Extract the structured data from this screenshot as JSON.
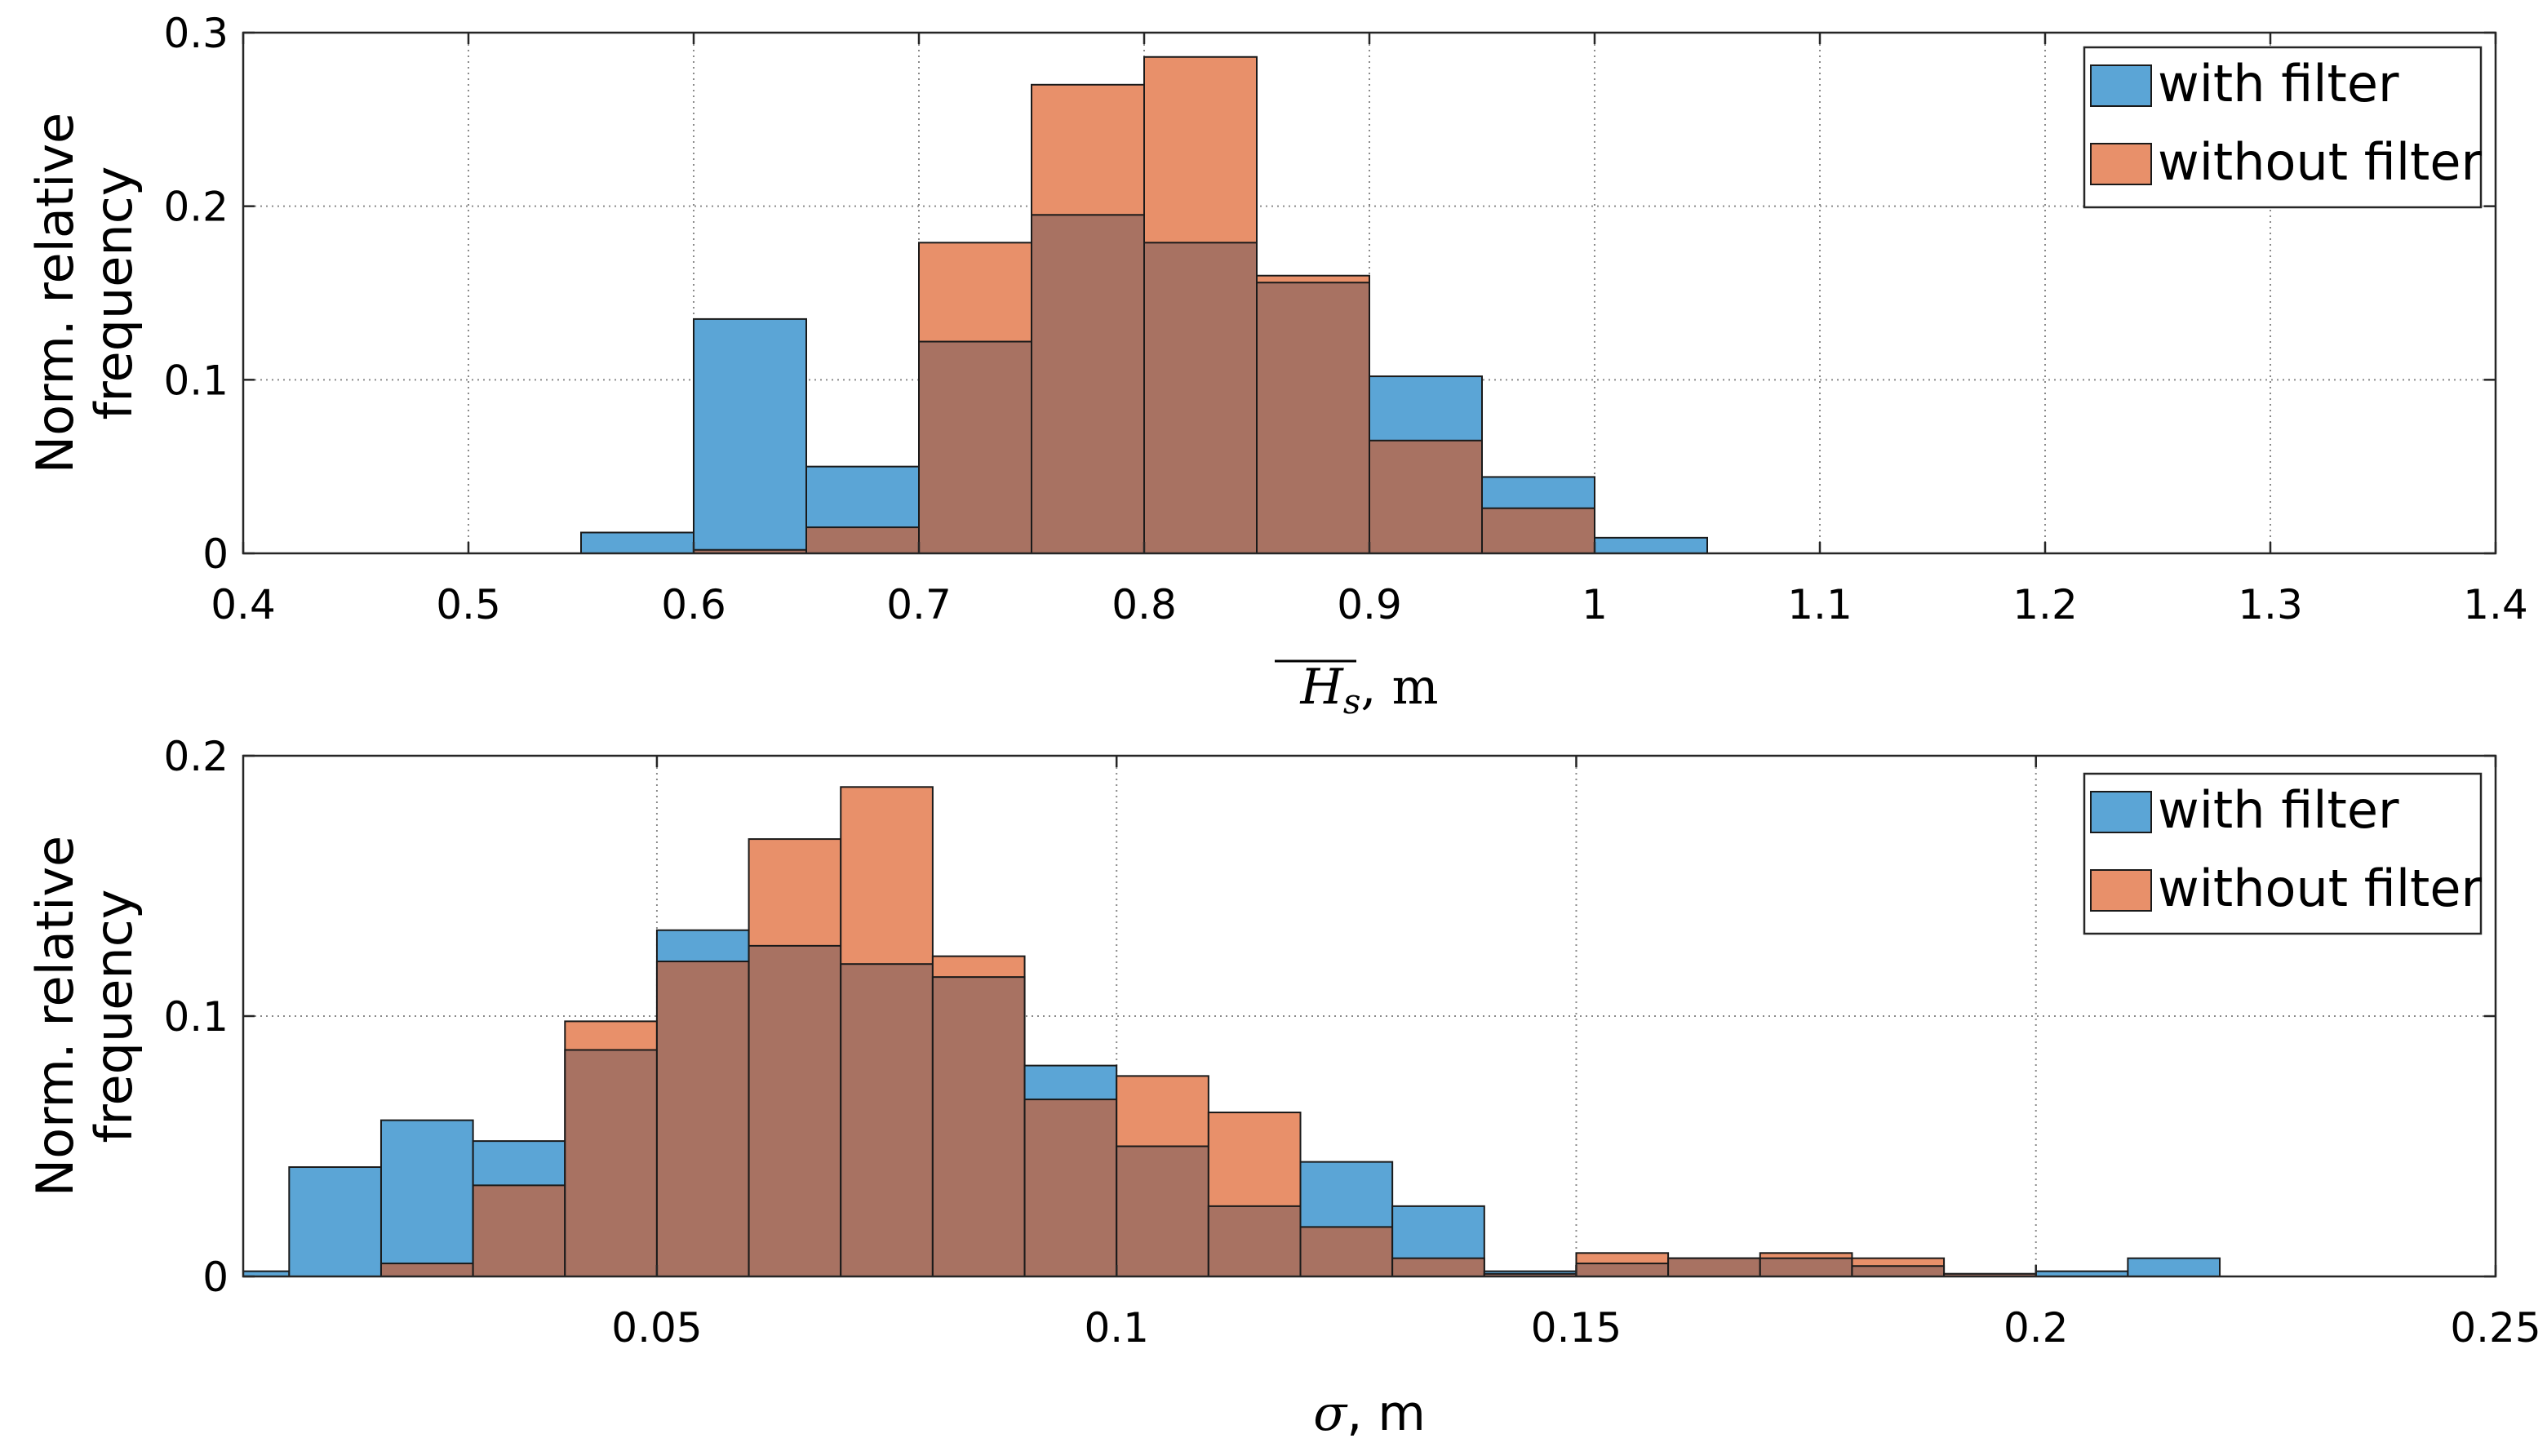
{
  "colors": {
    "with_filter": "#5ba5d6",
    "without_filter": "#e8906a",
    "overlap": "#a87262"
  },
  "chart_data": [
    {
      "type": "bar",
      "title": "",
      "xlabel": {
        "symbol": "H",
        "sub": "s",
        "unit": ", m",
        "overline": true
      },
      "ylabel": [
        "Norm. relative",
        "frequency"
      ],
      "xlim": [
        0.4,
        1.4
      ],
      "ylim": [
        0,
        0.3
      ],
      "xticks": [
        0.4,
        0.5,
        0.6,
        0.7,
        0.8,
        0.9,
        1,
        1.1,
        1.2,
        1.3,
        1.4
      ],
      "xtick_labels": [
        "0.4",
        "0.5",
        "0.6",
        "0.7",
        "0.8",
        "0.9",
        "1",
        "1.1",
        "1.2",
        "1.3",
        "1.4"
      ],
      "yticks": [
        0,
        0.1,
        0.2,
        0.3
      ],
      "ytick_labels": [
        "0",
        "0.1",
        "0.2",
        "0.3"
      ],
      "grid": true,
      "legend_position": "top-right",
      "bin_edges": [
        0.55,
        0.6,
        0.65,
        0.7,
        0.75,
        0.8,
        0.85,
        0.9,
        0.95,
        1.0,
        1.05
      ],
      "series": [
        {
          "name": "with filter",
          "values": [
            0.012,
            0.135,
            0.05,
            0.122,
            0.195,
            0.179,
            0.156,
            0.102,
            0.044,
            0.009
          ]
        },
        {
          "name": "without filter",
          "values": [
            0,
            0.002,
            0.015,
            0.179,
            0.27,
            0.286,
            0.16,
            0.065,
            0.026,
            0
          ]
        }
      ]
    },
    {
      "type": "bar",
      "title": "",
      "xlabel": {
        "symbol": "σ",
        "sub": "",
        "unit": ", m",
        "overline": false
      },
      "ylabel": [
        "Norm. relative",
        "frequency"
      ],
      "xlim": [
        0.005,
        0.25
      ],
      "ylim": [
        0,
        0.2
      ],
      "xticks": [
        0.05,
        0.1,
        0.15,
        0.2,
        0.25
      ],
      "xtick_labels": [
        "0.05",
        "0.1",
        "0.15",
        "0.2",
        "0.25"
      ],
      "yticks": [
        0,
        0.1,
        0.2
      ],
      "ytick_labels": [
        "0",
        "0.1",
        "0.2"
      ],
      "grid": true,
      "legend_position": "top-right",
      "bin_edges": [
        0.0,
        0.01,
        0.02,
        0.03,
        0.04,
        0.05,
        0.06,
        0.07,
        0.08,
        0.09,
        0.1,
        0.11,
        0.12,
        0.13,
        0.14,
        0.15,
        0.16,
        0.17,
        0.18,
        0.19,
        0.2,
        0.21,
        0.22
      ],
      "series": [
        {
          "name": "with filter",
          "values": [
            0.002,
            0.042,
            0.06,
            0.052,
            0.087,
            0.133,
            0.127,
            0.12,
            0.115,
            0.081,
            0.05,
            0.027,
            0.044,
            0.027,
            0.002,
            0.005,
            0.007,
            0.007,
            0.004,
            0.001,
            0.002,
            0.007
          ]
        },
        {
          "name": "without filter",
          "values": [
            0,
            0,
            0.005,
            0.035,
            0.098,
            0.121,
            0.168,
            0.188,
            0.123,
            0.068,
            0.077,
            0.063,
            0.019,
            0.007,
            0.001,
            0.009,
            0.007,
            0.009,
            0.007,
            0.001,
            0,
            0
          ]
        }
      ]
    }
  ]
}
